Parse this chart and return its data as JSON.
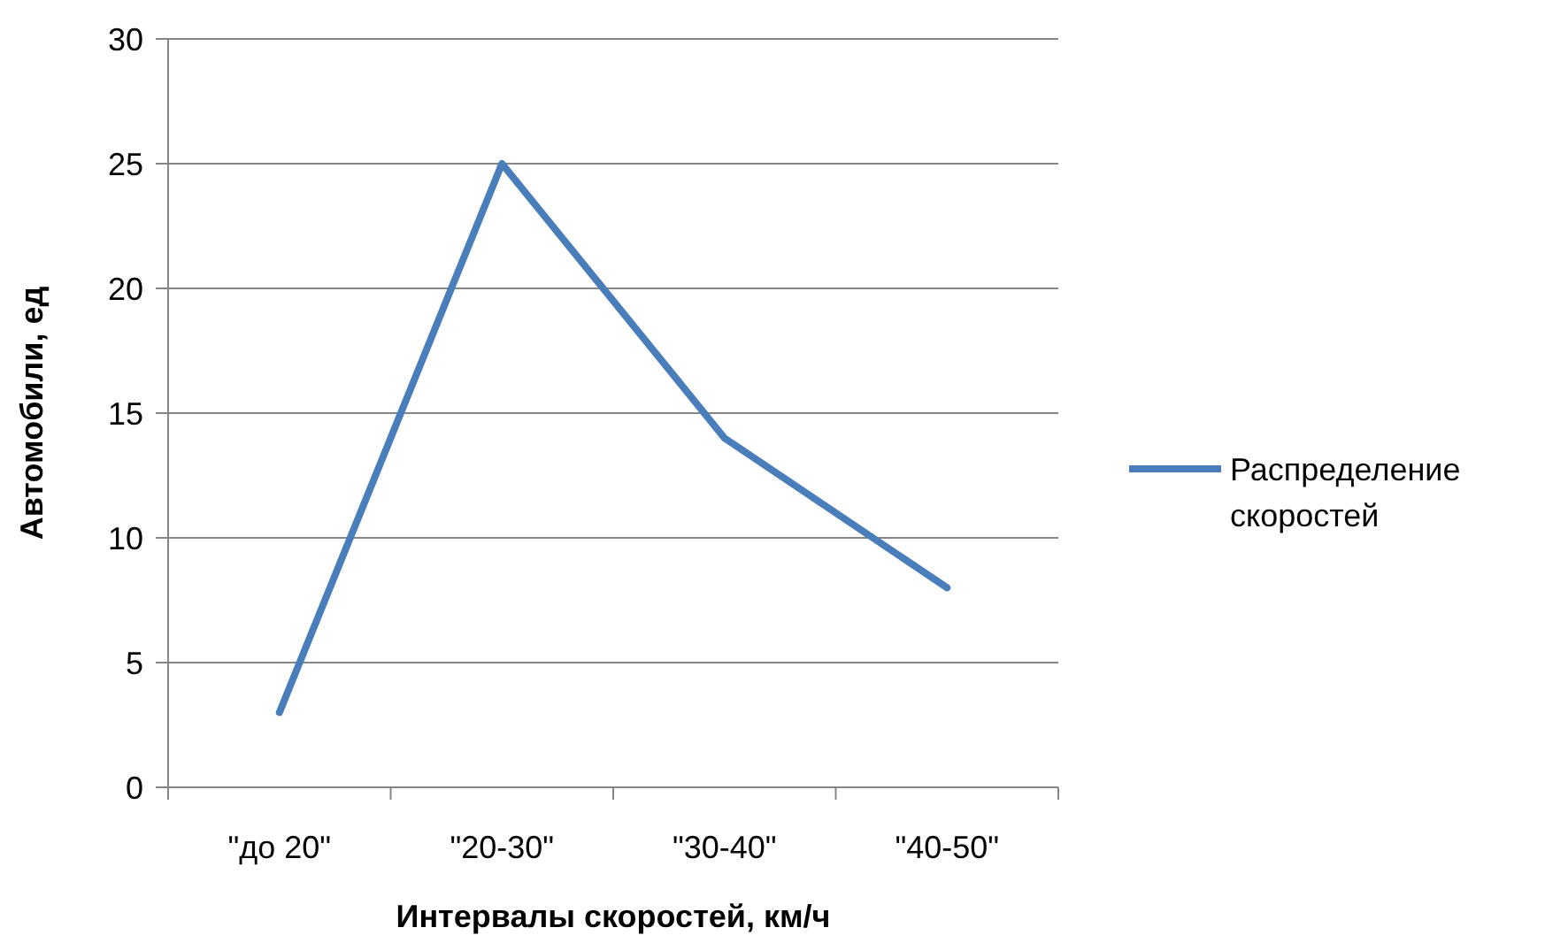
{
  "chart_data": {
    "type": "line",
    "xlabel": "Интервалы скоростей, км/ч",
    "ylabel": "Автомобили, ед",
    "categories": [
      "\"до 20\"",
      "\"20-30\"",
      "\"30-40\"",
      "\"40-50\""
    ],
    "series": [
      {
        "name": "Распределение скоростей",
        "color": "#4a7ebb",
        "values": [
          3,
          25,
          14,
          8
        ]
      }
    ],
    "ylim": [
      0,
      30
    ],
    "yticks": [
      0,
      5,
      10,
      15,
      20,
      25,
      30
    ],
    "grid": "y",
    "legend": "right",
    "marker": "none",
    "line_style": "solid"
  }
}
